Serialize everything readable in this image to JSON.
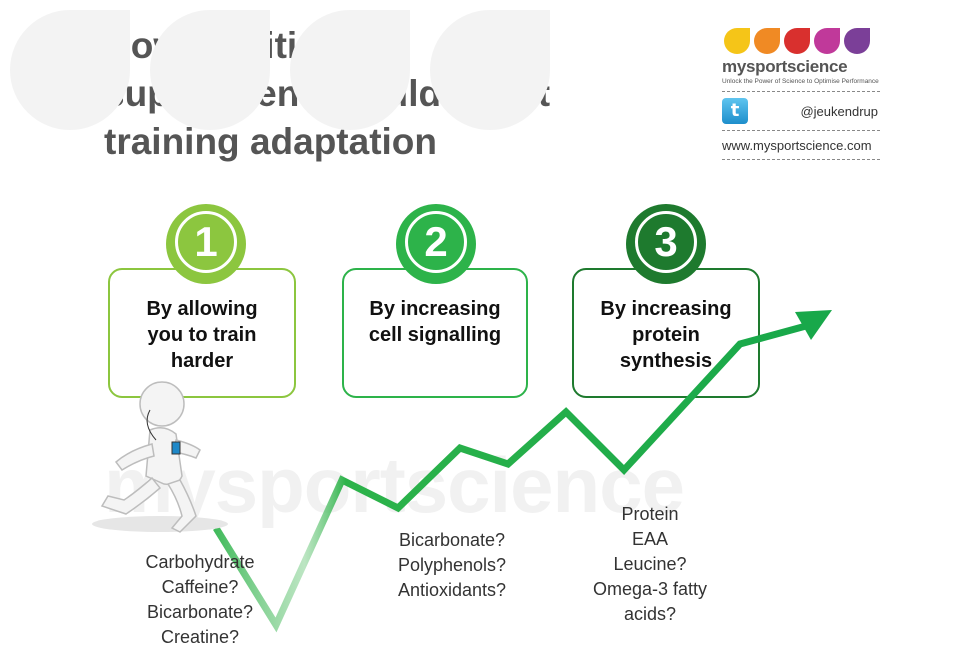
{
  "title": {
    "line1": "How nutrition or",
    "line2": "supplements could affect",
    "line3": "training adaptation"
  },
  "brand": {
    "name": "mysportscience",
    "tagline": "Unlock the Power of Science to Optimise Performance",
    "twitter_handle": "@jeukendrup",
    "website": "www.mysportscience.com",
    "drop_colors": [
      "#f5c518",
      "#f08a24",
      "#d9302e",
      "#c0399a",
      "#7b3f98"
    ]
  },
  "watermark": {
    "text": "mysportscience"
  },
  "steps": [
    {
      "number": "1",
      "lines": [
        "By allowing",
        "you to train",
        "harder"
      ],
      "color": "#8cc63f"
    },
    {
      "number": "2",
      "lines": [
        "By increasing",
        "cell signalling"
      ],
      "color": "#2db34a"
    },
    {
      "number": "3",
      "lines": [
        "By increasing",
        "protein",
        "synthesis"
      ],
      "color": "#1e7a2e"
    }
  ],
  "lists": {
    "step1": [
      "Carbohydrate",
      "Caffeine?",
      "Bicarbonate?",
      "Creatine?"
    ],
    "step2": [
      "Bicarbonate?",
      "Polyphenols?",
      "Antioxidants?"
    ],
    "step3": [
      "Protein",
      "EAA",
      "Leucine?",
      "Omega-3 fatty",
      "acids?"
    ]
  },
  "icons": {
    "twitter": "twitter-icon",
    "runner": "runner-figure-icon",
    "trend": "trend-arrow-icon"
  }
}
